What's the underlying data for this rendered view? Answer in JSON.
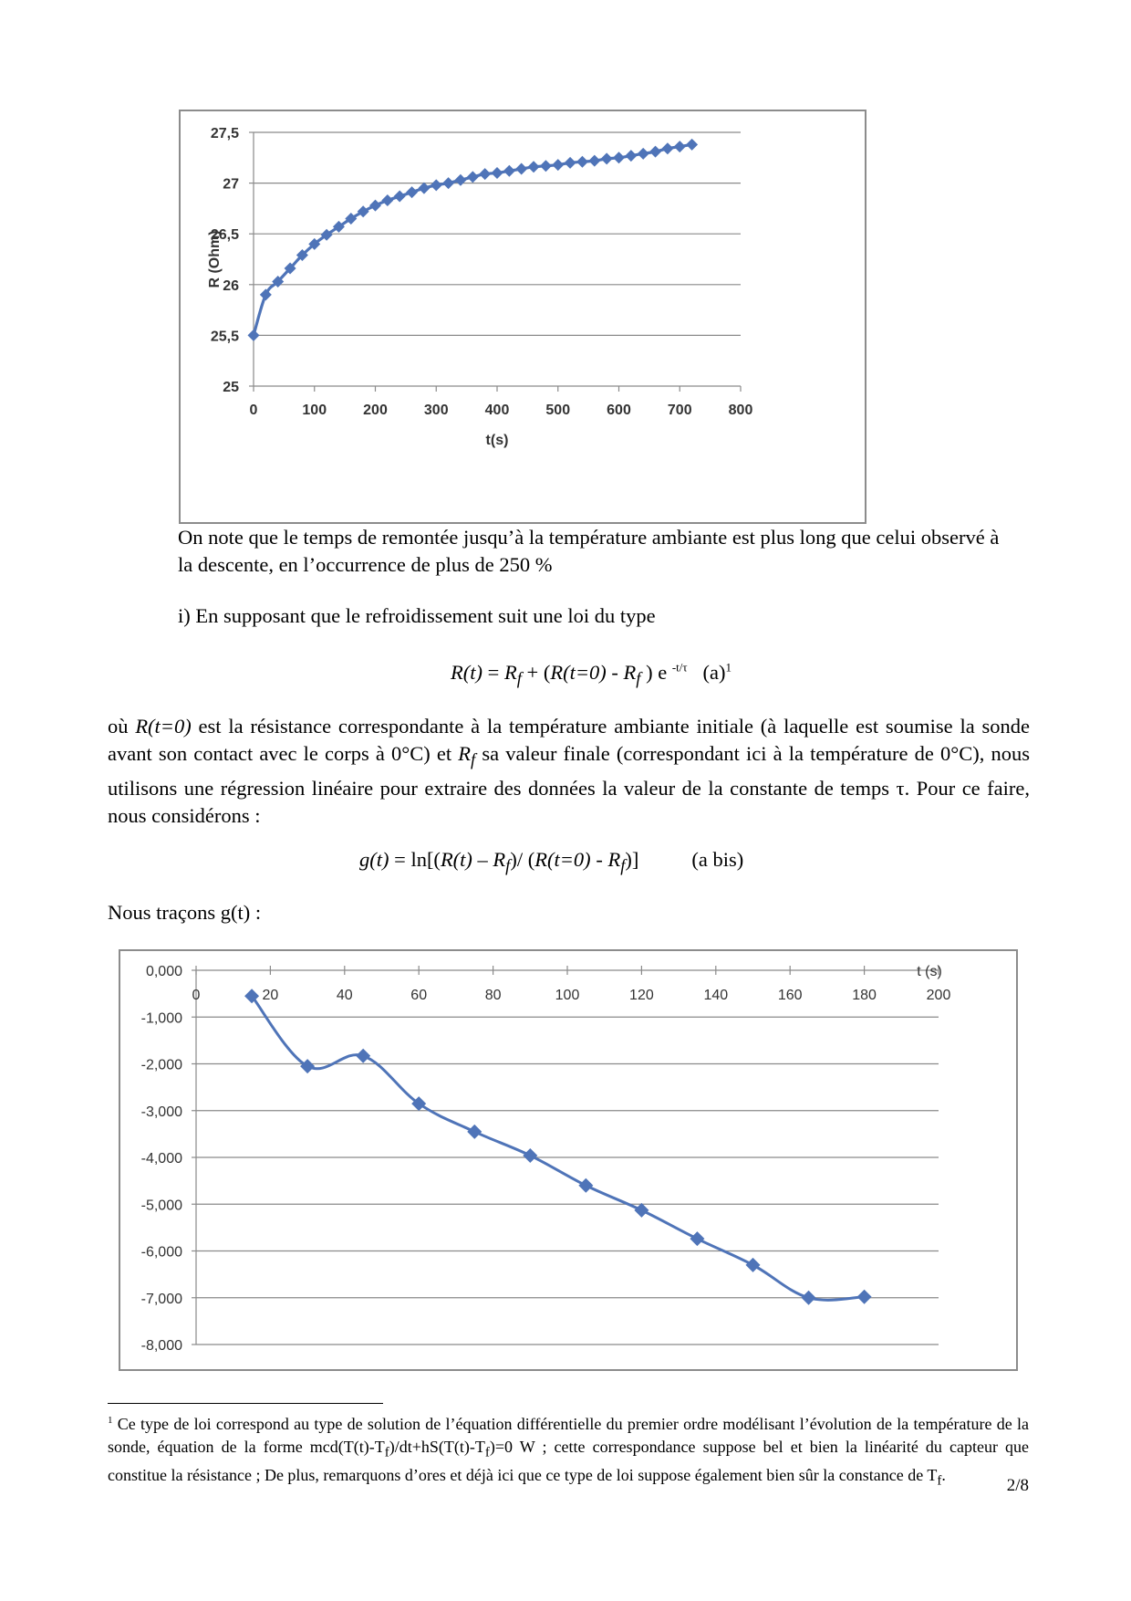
{
  "chart_data": [
    {
      "type": "line",
      "xlabel": "t(s)",
      "ylabel": "R (Ohm)",
      "xlim": [
        0,
        800
      ],
      "ylim": [
        25,
        27.5
      ],
      "xticks": [
        0,
        100,
        200,
        300,
        400,
        500,
        600,
        700,
        800
      ],
      "yticks": [
        25,
        25.5,
        26,
        26.5,
        27,
        27.5
      ],
      "xtick_labels": [
        "0",
        "100",
        "200",
        "300",
        "400",
        "500",
        "600",
        "700",
        "800"
      ],
      "ytick_labels": [
        "25",
        "25,5",
        "26",
        "26,5",
        "27",
        "27,5"
      ],
      "grid": "horizontal",
      "marker": "diamond",
      "color": "#4f74b8",
      "x": [
        0,
        20,
        40,
        60,
        80,
        100,
        120,
        140,
        160,
        180,
        200,
        220,
        240,
        260,
        280,
        300,
        320,
        340,
        360,
        380,
        400,
        420,
        440,
        460,
        480,
        500,
        520,
        540,
        560,
        580,
        600,
        620,
        640,
        660,
        680,
        700,
        720
      ],
      "y": [
        25.5,
        25.9,
        26.03,
        26.16,
        26.29,
        26.4,
        26.49,
        26.57,
        26.65,
        26.72,
        26.78,
        26.83,
        26.87,
        26.91,
        26.95,
        26.98,
        27.0,
        27.03,
        27.06,
        27.09,
        27.1,
        27.12,
        27.14,
        27.16,
        27.17,
        27.18,
        27.2,
        27.21,
        27.22,
        27.24,
        27.25,
        27.27,
        27.29,
        27.31,
        27.34,
        27.36,
        27.38
      ]
    },
    {
      "type": "line",
      "xlabel": "t (s)",
      "ylabel": "",
      "xlim": [
        0,
        200
      ],
      "ylim": [
        -8,
        0
      ],
      "xticks": [
        0,
        20,
        40,
        60,
        80,
        100,
        120,
        140,
        160,
        180,
        200
      ],
      "yticks": [
        0,
        -1,
        -2,
        -3,
        -4,
        -5,
        -6,
        -7,
        -8
      ],
      "xtick_labels": [
        "0",
        "20",
        "40",
        "60",
        "80",
        "100",
        "120",
        "140",
        "160",
        "180",
        "200"
      ],
      "ytick_labels": [
        "0,000",
        "-1,000",
        "-2,000",
        "-3,000",
        "-4,000",
        "-5,000",
        "-6,000",
        "-7,000",
        "-8,000"
      ],
      "grid": "horizontal",
      "marker": "diamond",
      "smooth": true,
      "color": "#4f74b8",
      "x": [
        15,
        30,
        45,
        60,
        75,
        90,
        105,
        120,
        135,
        150,
        165,
        180
      ],
      "y": [
        -0.55,
        -2.05,
        -1.83,
        -2.85,
        -3.45,
        -3.96,
        -4.6,
        -5.13,
        -5.74,
        -6.3,
        -7.0,
        -6.98
      ]
    }
  ],
  "text": {
    "para1": "On note que le temps de remontée jusqu’à la température ambiante est plus long que celui observé à la descente, en l’occurrence de plus de 250 %",
    "para2": "i) En supposant que le refroidissement suit une loi du type",
    "eq_a_r_of_t": "R(t)",
    "eq_a_eq": " = ",
    "eq_a_rf1": "R",
    "eq_a_f1": "f",
    "eq_a_plus": " + (",
    "eq_a_r0": "R(t=0)",
    "eq_a_minus": " - ",
    "eq_a_rf2": "R",
    "eq_a_f2": "f",
    "eq_a_close": " ) e ",
    "eq_a_exp": "-t/τ",
    "eq_a_tag": "(a)",
    "eq_a_fnref": "1",
    "para3_ou": "où ",
    "para3_r0": "R(t=0)",
    "para3_mid": "  est la résistance correspondante à la température ambiante initiale (à laquelle est soumise la sonde avant son contact avec le corps à 0°C) et ",
    "para3_rf": "R",
    "para3_f": "f",
    "para3_end": " sa valeur finale (correspondant ici à la température de 0°C), nous utilisons une régression linéaire pour extraire des données la valeur de la constante de temps τ. Pour ce faire, nous considérons :",
    "eq_b_g": "g(t)",
    "eq_b_eq": " = ln[(",
    "eq_b_rt": "R(t)",
    "eq_b_minus1": " – ",
    "eq_b_rf1": "R",
    "eq_b_f1": "f",
    "eq_b_div": ")/ (",
    "eq_b_r0": "R(t=0)",
    "eq_b_minus2": " - ",
    "eq_b_rf2": "R",
    "eq_b_f2": "f",
    "eq_b_close": ")]",
    "eq_b_tag": "(a bis)",
    "para4": "Nous traçons g(t) :",
    "fn_mark": "1",
    "fn_part1": " Ce type de loi correspond au type de solution de l’équation différentielle du premier ordre modélisant l’évolution de la température de la sonde, équation de la forme mcd(T(t)-T",
    "fn_sub1": "f",
    "fn_part2": ")/dt+hS(T(t)-T",
    "fn_sub2": "f",
    "fn_part3": ")=0 W ; cette correspondance suppose bel et bien la linéarité du capteur que constitue la résistance ; De plus, remarquons d’ores et déjà ici que ce type de loi suppose également bien sûr la constance de T",
    "fn_sub3": "f",
    "fn_end": ".",
    "page_number": "2/8"
  }
}
